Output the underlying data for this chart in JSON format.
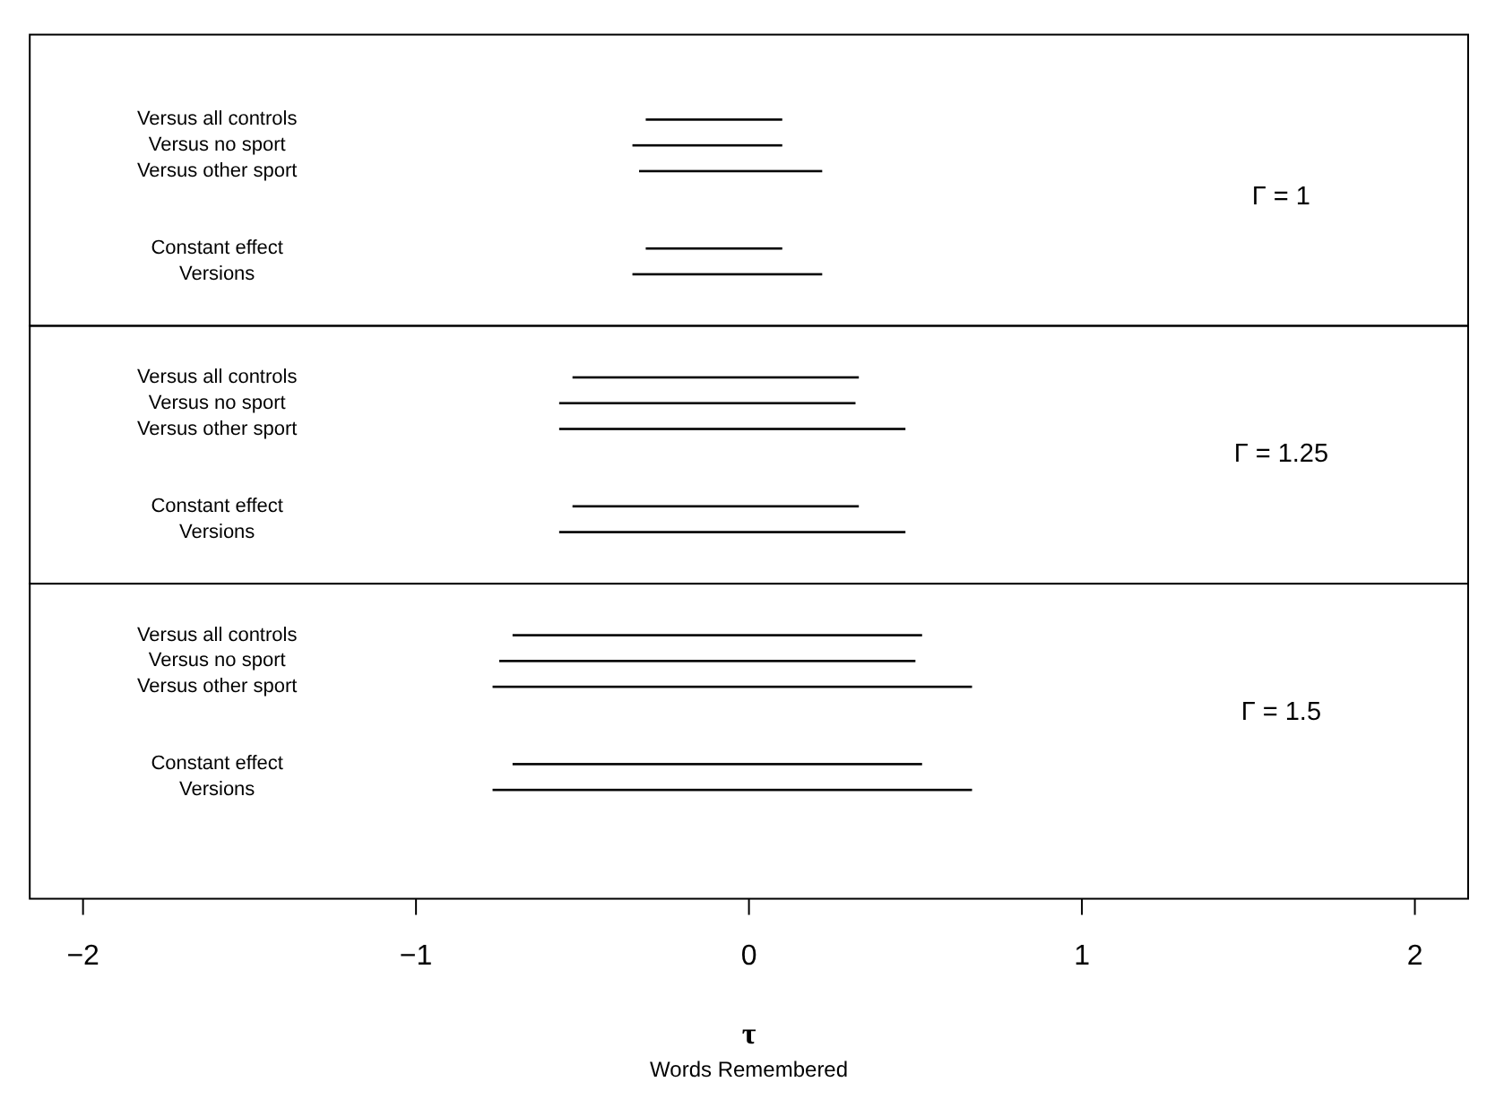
{
  "chart_data": [
    {
      "type": "bar",
      "orientation": "horizontal",
      "categories": [
        "Versus all controls",
        "Versus no sport",
        "Versus other sport",
        null,
        null,
        "Constant effect",
        "Versions"
      ],
      "base": [
        -0.31,
        -0.35,
        -0.33,
        null,
        null,
        -0.31,
        -0.35
      ],
      "values": [
        0.41,
        0.45,
        0.55,
        null,
        null,
        0.41,
        0.57
      ],
      "color": "#000000",
      "xlim": [
        -2.16,
        2.16
      ],
      "tick_labels": "y",
      "annotations": [
        "Γ = 1"
      ]
    },
    {
      "type": "bar",
      "orientation": "horizontal",
      "categories": [
        "Versus all controls",
        "Versus no sport",
        "Versus other sport",
        null,
        null,
        "Constant effect",
        "Versions"
      ],
      "base": [
        -0.53,
        -0.57,
        -0.57,
        null,
        null,
        -0.53,
        -0.57
      ],
      "values": [
        0.86,
        0.89,
        1.04,
        null,
        null,
        0.86,
        1.04
      ],
      "color": "#000000",
      "xlim": [
        -2.16,
        2.16
      ],
      "tick_labels": "y",
      "annotations": [
        "Γ = 1.25"
      ]
    },
    {
      "type": "bar",
      "orientation": "horizontal",
      "categories": [
        "Versus all controls",
        "Versus no sport",
        "Versus other sport",
        null,
        null,
        "Constant effect",
        "Versions"
      ],
      "base": [
        -0.71,
        -0.75,
        -0.77,
        null,
        null,
        -0.71,
        -0.77
      ],
      "values": [
        1.23,
        1.25,
        1.44,
        null,
        null,
        1.23,
        1.44
      ],
      "color": "#000000",
      "xlim": [
        -2.16,
        2.16
      ],
      "xticks": [
        -2,
        -1,
        0,
        1,
        2
      ],
      "xlabel": "τ",
      "annotations": [
        "Γ = 1.5",
        "Words Remembered"
      ]
    }
  ]
}
